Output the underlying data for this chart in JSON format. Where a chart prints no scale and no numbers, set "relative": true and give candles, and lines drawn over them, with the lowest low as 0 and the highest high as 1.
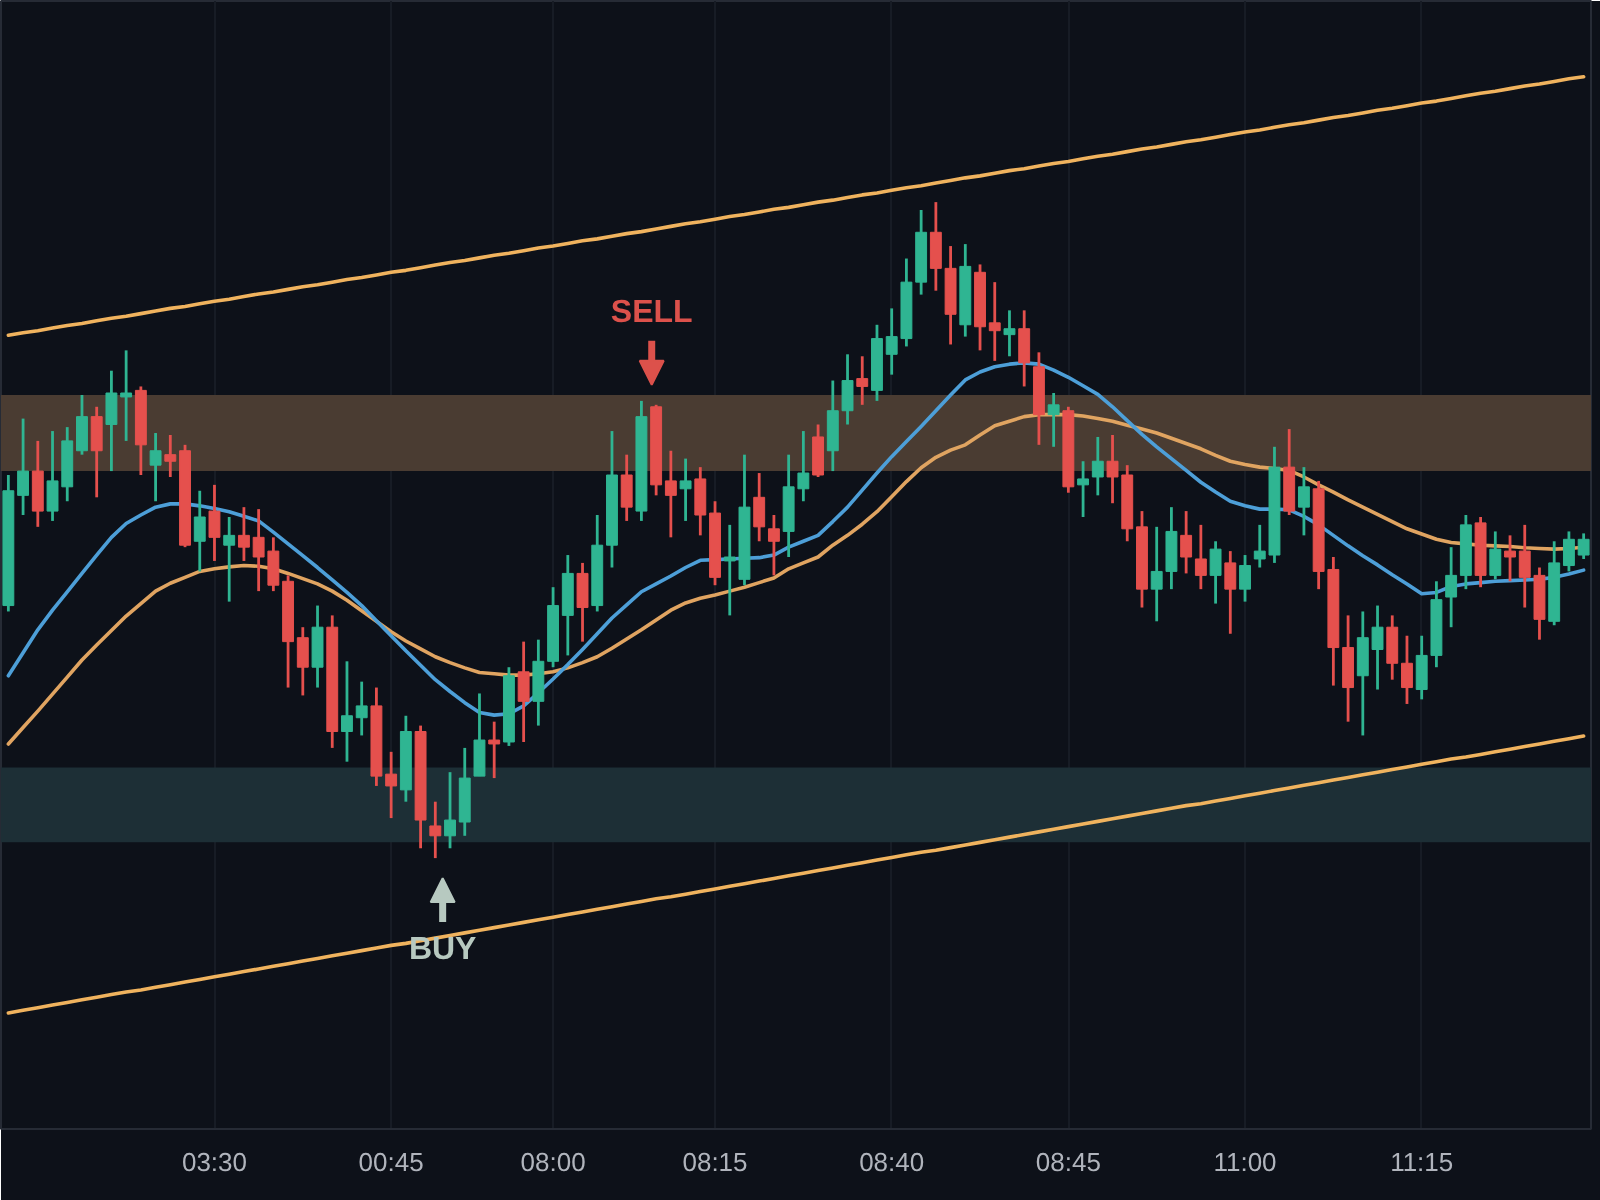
{
  "chart_data": {
    "type": "candlestick",
    "relative": true,
    "categories": [
      null,
      null,
      null,
      null,
      null,
      null,
      null,
      null,
      null,
      null,
      null,
      null,
      null,
      null,
      "03:30",
      null,
      null,
      null,
      null,
      null,
      null,
      null,
      null,
      null,
      null,
      null,
      "00:45",
      null,
      null,
      null,
      null,
      null,
      null,
      null,
      null,
      null,
      null,
      "08:00",
      null,
      null,
      null,
      null,
      null,
      null,
      null,
      null,
      null,
      null,
      "08:15",
      null,
      null,
      null,
      null,
      null,
      null,
      null,
      null,
      null,
      null,
      null,
      "08:40",
      null,
      null,
      null,
      null,
      null,
      null,
      null,
      null,
      null,
      null,
      null,
      "08:45",
      null,
      null,
      null,
      null,
      null,
      null,
      null,
      null,
      null,
      null,
      null,
      "11:00",
      null,
      null,
      null,
      null,
      null,
      null,
      null,
      null,
      null,
      null,
      null,
      "11:15",
      null,
      null,
      null,
      null,
      null,
      null,
      null,
      null,
      null,
      null,
      null
    ],
    "ohlc": [
      [
        0.385,
        0.584,
        0.376,
        0.56
      ],
      [
        0.553,
        0.67,
        0.523,
        0.59
      ],
      [
        0.59,
        0.636,
        0.505,
        0.529
      ],
      [
        0.529,
        0.651,
        0.514,
        0.575
      ],
      [
        0.566,
        0.657,
        0.544,
        0.636
      ],
      [
        0.621,
        0.706,
        0.615,
        0.673
      ],
      [
        0.673,
        0.688,
        0.55,
        0.621
      ],
      [
        0.661,
        0.743,
        0.59,
        0.709
      ],
      [
        0.703,
        0.774,
        0.636,
        0.709
      ],
      [
        0.713,
        0.719,
        0.584,
        0.63
      ],
      [
        0.599,
        0.648,
        0.544,
        0.621
      ],
      [
        0.615,
        0.645,
        0.581,
        0.605
      ],
      [
        0.621,
        0.63,
        0.474,
        0.477
      ],
      [
        0.483,
        0.56,
        0.437,
        0.52
      ],
      [
        0.529,
        0.569,
        0.453,
        0.489
      ],
      [
        0.477,
        0.52,
        0.391,
        0.492
      ],
      [
        0.492,
        0.535,
        0.453,
        0.474
      ],
      [
        0.489,
        0.532,
        0.407,
        0.459
      ],
      [
        0.468,
        0.489,
        0.407,
        0.416
      ],
      [
        0.422,
        0.431,
        0.26,
        0.33
      ],
      [
        0.336,
        0.352,
        0.248,
        0.291
      ],
      [
        0.291,
        0.385,
        0.26,
        0.352
      ],
      [
        0.352,
        0.37,
        0.168,
        0.193
      ],
      [
        0.193,
        0.3,
        0.147,
        0.217
      ],
      [
        0.214,
        0.269,
        0.187,
        0.232
      ],
      [
        0.232,
        0.26,
        0.11,
        0.125
      ],
      [
        0.128,
        0.162,
        0.061,
        0.11
      ],
      [
        0.104,
        0.217,
        0.086,
        0.193
      ],
      [
        0.193,
        0.202,
        0.015,
        0.058
      ],
      [
        0.049,
        0.086,
        0.0,
        0.034
      ],
      [
        0.034,
        0.131,
        0.015,
        0.058
      ],
      [
        0.055,
        0.168,
        0.034,
        0.122
      ],
      [
        0.125,
        0.251,
        0.125,
        0.18
      ],
      [
        0.18,
        0.208,
        0.122,
        0.174
      ],
      [
        0.177,
        0.291,
        0.171,
        0.278
      ],
      [
        0.284,
        0.33,
        0.177,
        0.239
      ],
      [
        0.239,
        0.333,
        0.202,
        0.3
      ],
      [
        0.3,
        0.413,
        0.291,
        0.385
      ],
      [
        0.37,
        0.462,
        0.309,
        0.434
      ],
      [
        0.434,
        0.45,
        0.33,
        0.382
      ],
      [
        0.385,
        0.523,
        0.376,
        0.477
      ],
      [
        0.477,
        0.651,
        0.443,
        0.584
      ],
      [
        0.584,
        0.615,
        0.514,
        0.535
      ],
      [
        0.529,
        0.697,
        0.514,
        0.673
      ],
      [
        0.688,
        0.691,
        0.553,
        0.569
      ],
      [
        0.575,
        0.621,
        0.489,
        0.553
      ],
      [
        0.563,
        0.609,
        0.514,
        0.575
      ],
      [
        0.578,
        0.596,
        0.492,
        0.523
      ],
      [
        0.526,
        0.544,
        0.416,
        0.428
      ],
      [
        0.453,
        0.508,
        0.37,
        0.459
      ],
      [
        0.425,
        0.615,
        0.416,
        0.535
      ],
      [
        0.55,
        0.587,
        0.483,
        0.505
      ],
      [
        0.502,
        0.523,
        0.431,
        0.483
      ],
      [
        0.498,
        0.615,
        0.459,
        0.566
      ],
      [
        0.563,
        0.651,
        0.544,
        0.587
      ],
      [
        0.642,
        0.661,
        0.581,
        0.584
      ],
      [
        0.621,
        0.728,
        0.59,
        0.682
      ],
      [
        0.682,
        0.768,
        0.661,
        0.728
      ],
      [
        0.731,
        0.765,
        0.691,
        0.719
      ],
      [
        0.713,
        0.813,
        0.697,
        0.792
      ],
      [
        0.768,
        0.838,
        0.737,
        0.795
      ],
      [
        0.792,
        0.914,
        0.78,
        0.878
      ],
      [
        0.878,
        0.988,
        0.859,
        0.954
      ],
      [
        0.954,
        1.0,
        0.865,
        0.899
      ],
      [
        0.899,
        0.933,
        0.783,
        0.829
      ],
      [
        0.813,
        0.936,
        0.795,
        0.902
      ],
      [
        0.893,
        0.905,
        0.774,
        0.81
      ],
      [
        0.816,
        0.878,
        0.758,
        0.804
      ],
      [
        0.798,
        0.835,
        0.765,
        0.807
      ],
      [
        0.807,
        0.835,
        0.719,
        0.755
      ],
      [
        0.749,
        0.771,
        0.63,
        0.676
      ],
      [
        0.676,
        0.709,
        0.627,
        0.691
      ],
      [
        0.682,
        0.688,
        0.557,
        0.566
      ],
      [
        0.569,
        0.605,
        0.52,
        0.578
      ],
      [
        0.581,
        0.642,
        0.553,
        0.605
      ],
      [
        0.605,
        0.645,
        0.541,
        0.581
      ],
      [
        0.584,
        0.599,
        0.483,
        0.502
      ],
      [
        0.505,
        0.529,
        0.382,
        0.41
      ],
      [
        0.41,
        0.505,
        0.361,
        0.437
      ],
      [
        0.437,
        0.535,
        0.41,
        0.498
      ],
      [
        0.492,
        0.529,
        0.434,
        0.459
      ],
      [
        0.456,
        0.508,
        0.41,
        0.431
      ],
      [
        0.431,
        0.483,
        0.388,
        0.471
      ],
      [
        0.45,
        0.468,
        0.342,
        0.41
      ],
      [
        0.41,
        0.462,
        0.391,
        0.446
      ],
      [
        0.456,
        0.508,
        0.443,
        0.468
      ],
      [
        0.462,
        0.627,
        0.45,
        0.596
      ],
      [
        0.596,
        0.654,
        0.523,
        0.529
      ],
      [
        0.535,
        0.596,
        0.492,
        0.566
      ],
      [
        0.563,
        0.575,
        0.41,
        0.437
      ],
      [
        0.44,
        0.459,
        0.263,
        0.321
      ],
      [
        0.321,
        0.37,
        0.208,
        0.26
      ],
      [
        0.278,
        0.376,
        0.187,
        0.336
      ],
      [
        0.318,
        0.385,
        0.257,
        0.352
      ],
      [
        0.352,
        0.37,
        0.272,
        0.297
      ],
      [
        0.297,
        0.339,
        0.235,
        0.26
      ],
      [
        0.257,
        0.339,
        0.242,
        0.309
      ],
      [
        0.309,
        0.422,
        0.291,
        0.394
      ],
      [
        0.398,
        0.474,
        0.352,
        0.431
      ],
      [
        0.431,
        0.523,
        0.41,
        0.508
      ],
      [
        0.511,
        0.52,
        0.413,
        0.431
      ],
      [
        0.431,
        0.498,
        0.425,
        0.471
      ],
      [
        0.468,
        0.492,
        0.422,
        0.459
      ],
      [
        0.468,
        0.508,
        0.382,
        0.428
      ],
      [
        0.431,
        0.443,
        0.333,
        0.364
      ],
      [
        0.361,
        0.483,
        0.355,
        0.45
      ],
      [
        0.446,
        0.498,
        0.437,
        0.486
      ],
      [
        0.462,
        0.495,
        0.456,
        0.486
      ]
    ],
    "colors": [
      "#2fb592",
      "#2fb592",
      "#e5504d",
      "#2fb592",
      "#2fb592",
      "#2fb592",
      "#e5504d",
      "#2fb592",
      "#2fb592",
      "#e5504d",
      "#2fb592",
      "#e5504d",
      "#e5504d",
      "#2fb592",
      "#e5504d",
      "#2fb592",
      "#e5504d",
      "#e5504d",
      "#e5504d",
      "#e5504d",
      "#e5504d",
      "#2fb592",
      "#e5504d",
      "#2fb592",
      "#2fb592",
      "#e5504d",
      "#e5504d",
      "#2fb592",
      "#e5504d",
      "#e5504d",
      "#2fb592",
      "#2fb592",
      "#2fb592",
      "#e5504d",
      "#2fb592",
      "#e5504d",
      "#2fb592",
      "#2fb592",
      "#2fb592",
      "#e5504d",
      "#2fb592",
      "#2fb592",
      "#e5504d",
      "#2fb592",
      "#e5504d",
      "#e5504d",
      "#2fb592",
      "#e5504d",
      "#e5504d",
      "#2fb592",
      "#2fb592",
      "#e5504d",
      "#e5504d",
      "#2fb592",
      "#2fb592",
      "#e5504d",
      "#2fb592",
      "#2fb592",
      "#e5504d",
      "#2fb592",
      "#2fb592",
      "#2fb592",
      "#2fb592",
      "#e5504d",
      "#e5504d",
      "#2fb592",
      "#e5504d",
      "#e5504d",
      "#2fb592",
      "#e5504d",
      "#e5504d",
      "#2fb592",
      "#e5504d",
      "#2fb592",
      "#2fb592",
      "#e5504d",
      "#e5504d",
      "#e5504d",
      "#2fb592",
      "#2fb592",
      "#e5504d",
      "#e5504d",
      "#2fb592",
      "#e5504d",
      "#2fb592",
      "#2fb592",
      "#2fb592",
      "#e5504d",
      "#2fb592",
      "#e5504d",
      "#e5504d",
      "#e5504d",
      "#2fb592",
      "#2fb592",
      "#e5504d",
      "#e5504d",
      "#2fb592",
      "#2fb592",
      "#2fb592",
      "#2fb592",
      "#e5504d",
      "#2fb592",
      "#e5504d",
      "#e5504d",
      "#e5504d",
      "#2fb592",
      "#2fb592",
      "#2fb592"
    ],
    "grid": "x",
    "series": [
      {
        "type": "line",
        "color": "#f0b35e",
        "values": [
          0.797,
          0.801,
          0.804,
          0.808,
          0.812,
          0.815,
          0.819,
          0.823,
          0.826,
          0.83,
          0.834,
          0.838,
          0.841,
          0.845,
          0.849,
          0.852,
          0.856,
          0.86,
          0.863,
          0.867,
          0.871,
          0.874,
          0.878,
          0.882,
          0.885,
          0.889,
          0.893,
          0.896,
          0.9,
          0.904,
          0.908,
          0.911,
          0.915,
          0.919,
          0.922,
          0.926,
          0.93,
          0.933,
          0.937,
          0.941,
          0.944,
          0.948,
          0.952,
          0.955,
          0.959,
          0.963,
          0.967,
          0.97,
          0.974,
          0.978,
          0.981,
          0.985,
          0.989,
          0.992,
          0.996,
          1.0,
          1.003,
          1.007,
          1.011,
          1.014,
          1.018,
          1.022,
          1.025,
          1.029,
          1.033,
          1.037,
          1.04,
          1.044,
          1.048,
          1.051,
          1.055,
          1.059,
          1.062,
          1.066,
          1.07,
          1.073,
          1.077,
          1.081,
          1.084,
          1.088,
          1.092,
          1.095,
          1.099,
          1.103,
          1.107,
          1.11,
          1.114,
          1.118,
          1.121,
          1.125,
          1.129,
          1.132,
          1.136,
          1.14,
          1.143,
          1.147,
          1.151,
          1.154,
          1.158,
          1.162,
          1.166,
          1.169,
          1.173,
          1.177,
          1.18,
          1.184,
          1.188,
          1.191
        ]
      },
      {
        "type": "line",
        "color": "#f0b35e",
        "values": [
          -0.236,
          -0.232,
          -0.228,
          -0.224,
          -0.22,
          -0.216,
          -0.212,
          -0.208,
          -0.204,
          -0.201,
          -0.197,
          -0.193,
          -0.189,
          -0.185,
          -0.181,
          -0.177,
          -0.173,
          -0.169,
          -0.165,
          -0.161,
          -0.157,
          -0.153,
          -0.149,
          -0.145,
          -0.141,
          -0.137,
          -0.133,
          -0.13,
          -0.126,
          -0.122,
          -0.118,
          -0.114,
          -0.11,
          -0.106,
          -0.102,
          -0.098,
          -0.094,
          -0.09,
          -0.086,
          -0.082,
          -0.078,
          -0.074,
          -0.07,
          -0.066,
          -0.062,
          -0.059,
          -0.055,
          -0.051,
          -0.047,
          -0.043,
          -0.039,
          -0.035,
          -0.031,
          -0.027,
          -0.023,
          -0.019,
          -0.015,
          -0.011,
          -0.007,
          -0.003,
          0.001,
          0.005,
          0.009,
          0.012,
          0.016,
          0.02,
          0.024,
          0.028,
          0.032,
          0.036,
          0.04,
          0.044,
          0.048,
          0.052,
          0.056,
          0.06,
          0.064,
          0.068,
          0.072,
          0.076,
          0.08,
          0.083,
          0.087,
          0.091,
          0.095,
          0.099,
          0.103,
          0.107,
          0.111,
          0.115,
          0.119,
          0.123,
          0.127,
          0.131,
          0.135,
          0.139,
          0.143,
          0.147,
          0.151,
          0.154,
          0.158,
          0.162,
          0.166,
          0.17,
          0.174,
          0.178,
          0.182,
          0.186
        ]
      },
      {
        "type": "line",
        "color": "#e0a461",
        "values": [
          0.174,
          0.199,
          0.224,
          0.25,
          0.276,
          0.302,
          0.325,
          0.347,
          0.369,
          0.388,
          0.407,
          0.419,
          0.428,
          0.437,
          0.441,
          0.444,
          0.446,
          0.445,
          0.441,
          0.434,
          0.426,
          0.418,
          0.407,
          0.393,
          0.377,
          0.361,
          0.345,
          0.331,
          0.319,
          0.307,
          0.298,
          0.29,
          0.283,
          0.281,
          0.279,
          0.279,
          0.281,
          0.284,
          0.29,
          0.298,
          0.307,
          0.32,
          0.334,
          0.348,
          0.363,
          0.378,
          0.389,
          0.396,
          0.401,
          0.407,
          0.413,
          0.42,
          0.427,
          0.441,
          0.45,
          0.459,
          0.477,
          0.492,
          0.509,
          0.528,
          0.551,
          0.574,
          0.595,
          0.611,
          0.622,
          0.63,
          0.645,
          0.659,
          0.666,
          0.673,
          0.676,
          0.676,
          0.676,
          0.674,
          0.67,
          0.666,
          0.66,
          0.654,
          0.648,
          0.64,
          0.632,
          0.624,
          0.614,
          0.605,
          0.6,
          0.596,
          0.594,
          0.591,
          0.581,
          0.569,
          0.558,
          0.546,
          0.535,
          0.524,
          0.513,
          0.502,
          0.494,
          0.486,
          0.481,
          0.479,
          0.477,
          0.476,
          0.475,
          0.473,
          0.472,
          0.471,
          0.472,
          0.474
        ]
      },
      {
        "type": "line",
        "color": "#4d9fd8",
        "values": [
          0.278,
          0.313,
          0.348,
          0.378,
          0.406,
          0.434,
          0.462,
          0.489,
          0.51,
          0.523,
          0.535,
          0.54,
          0.54,
          0.537,
          0.533,
          0.528,
          0.521,
          0.514,
          0.497,
          0.479,
          0.461,
          0.443,
          0.424,
          0.405,
          0.385,
          0.362,
          0.339,
          0.316,
          0.294,
          0.272,
          0.254,
          0.237,
          0.222,
          0.218,
          0.22,
          0.232,
          0.252,
          0.273,
          0.295,
          0.318,
          0.342,
          0.366,
          0.386,
          0.406,
          0.418,
          0.43,
          0.443,
          0.454,
          0.455,
          0.456,
          0.457,
          0.458,
          0.462,
          0.474,
          0.483,
          0.492,
          0.513,
          0.535,
          0.561,
          0.587,
          0.612,
          0.635,
          0.658,
          0.682,
          0.706,
          0.729,
          0.741,
          0.749,
          0.753,
          0.755,
          0.753,
          0.744,
          0.733,
          0.72,
          0.707,
          0.688,
          0.667,
          0.646,
          0.627,
          0.609,
          0.591,
          0.573,
          0.558,
          0.544,
          0.537,
          0.532,
          0.532,
          0.531,
          0.521,
          0.508,
          0.492,
          0.476,
          0.461,
          0.447,
          0.432,
          0.418,
          0.403,
          0.405,
          0.414,
          0.418,
          0.42,
          0.422,
          0.423,
          0.424,
          0.425,
          0.428,
          0.433,
          0.439
        ]
      }
    ],
    "bands": [
      {
        "axis": "y",
        "from": 0.59,
        "to": 0.706,
        "color": "#4a3c32"
      },
      {
        "axis": "y",
        "from": 0.024,
        "to": 0.138,
        "color": "#1d2f36"
      }
    ],
    "annotations": [
      {
        "text": "SELL",
        "y": 0.691
      },
      {
        "text": "BUY",
        "y": 0.0
      }
    ]
  }
}
